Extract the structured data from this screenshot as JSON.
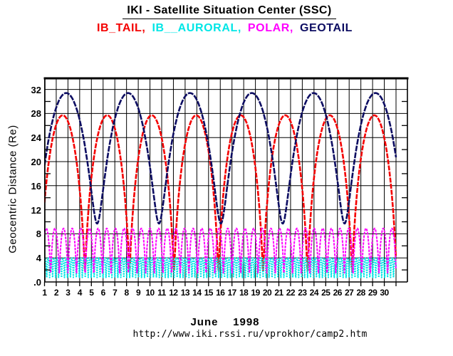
{
  "header": {
    "title": "IKI - Satellite Situation Center (SSC)"
  },
  "footer": {
    "month_label": "June    1998",
    "url": "http://www.iki.rssi.ru/vprokhor/camp2.htm"
  },
  "chart_data": {
    "type": "line",
    "title": "IKI - Satellite Situation Center (SSC)",
    "ylabel": "Geocentric Distance (Re)",
    "x_axis": {
      "unit": "day of June 1998",
      "label_days": [
        "1",
        "2",
        "3",
        "4",
        "5",
        "6",
        "7",
        "8",
        "9",
        "10",
        "11",
        "12",
        "13",
        "14",
        "15",
        "16",
        "17",
        "18",
        "19",
        "20",
        "21",
        "22",
        "23",
        "24",
        "25",
        "26",
        "27",
        "28",
        "29",
        "30"
      ],
      "gridline_days": [
        1,
        2,
        3,
        4,
        5,
        6,
        7,
        8,
        9,
        10,
        11,
        12,
        13,
        14,
        15,
        16,
        17,
        18,
        19,
        20,
        21,
        22,
        23,
        24,
        25,
        26,
        27,
        28,
        29,
        30,
        31
      ],
      "range": [
        1,
        32
      ],
      "data_span_days": [
        1,
        31
      ],
      "grid": "on"
    },
    "y_axis": {
      "unit": "Re",
      "tick_labels": [
        ".0",
        "4",
        "8",
        "12",
        "16",
        "20",
        "24",
        "28",
        "32"
      ],
      "tick_values": [
        0,
        4,
        8,
        12,
        16,
        20,
        24,
        28,
        32
      ],
      "minor_tick_step": 2,
      "range": [
        0,
        33.8
      ],
      "grid": "on"
    },
    "legend_position": "top-center",
    "series": [
      {
        "name": "IB_TAIL",
        "color": "#f40000",
        "apogee_re": 27.7,
        "perigee_re": 1.8,
        "period_days": 3.8,
        "first_apogee_day": 2.55,
        "apogee_days": [
          2.55,
          6.35,
          10.15,
          13.95,
          17.75,
          21.55,
          25.35,
          29.15
        ],
        "stroke_width": 2.6,
        "dash": "7 1.6"
      },
      {
        "name": "IB__AURORAL",
        "color": "#00e6e6",
        "apogee_re": 4.0,
        "perigee_re": 0.75,
        "period_days": 0.253,
        "first_apogee_day": 1.06,
        "stroke_width": 2.0,
        "dash": "2 1.4"
      },
      {
        "name": "POLAR",
        "color": "#ff00ff",
        "apogee_re": 8.9,
        "perigee_re": 1.5,
        "period_days": 0.7375,
        "first_apogee_day": 1.15,
        "stroke_width": 2.0,
        "dash": "3.5 1.4"
      },
      {
        "name": "GEOTAIL",
        "color": "#0d0d62",
        "apogee_re": 31.4,
        "perigee_re": 9.7,
        "period_days": 5.28,
        "first_apogee_day": 2.85,
        "apogee_days": [
          2.85,
          8.13,
          13.41,
          18.69,
          23.97,
          29.25
        ],
        "stroke_width": 2.6,
        "dash": "8 1.6"
      }
    ]
  }
}
